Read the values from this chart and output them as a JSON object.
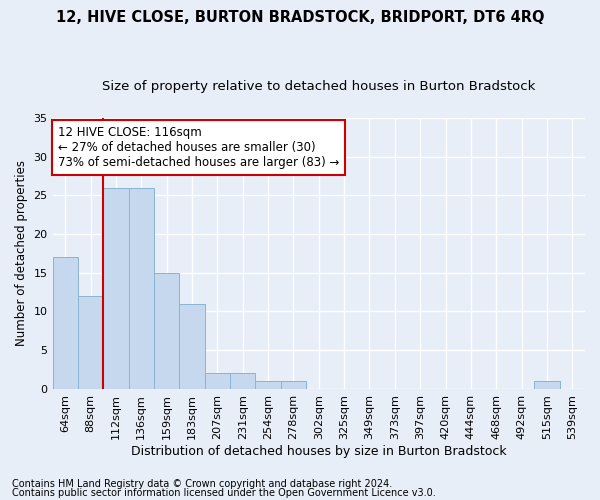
{
  "title": "12, HIVE CLOSE, BURTON BRADSTOCK, BRIDPORT, DT6 4RQ",
  "subtitle": "Size of property relative to detached houses in Burton Bradstock",
  "xlabel": "Distribution of detached houses by size in Burton Bradstock",
  "ylabel": "Number of detached properties",
  "bar_color": "#c5d8ed",
  "bar_edge_color": "#8ab4d4",
  "vline_color": "#cc0000",
  "vline_x": 2,
  "annotation_text": "12 HIVE CLOSE: 116sqm\n← 27% of detached houses are smaller (30)\n73% of semi-detached houses are larger (83) →",
  "annotation_box_color": "#ffffff",
  "annotation_box_edge_color": "#cc0000",
  "categories": [
    "64sqm",
    "88sqm",
    "112sqm",
    "136sqm",
    "159sqm",
    "183sqm",
    "207sqm",
    "231sqm",
    "254sqm",
    "278sqm",
    "302sqm",
    "325sqm",
    "349sqm",
    "373sqm",
    "397sqm",
    "420sqm",
    "444sqm",
    "468sqm",
    "492sqm",
    "515sqm",
    "539sqm"
  ],
  "values": [
    17,
    12,
    26,
    26,
    15,
    11,
    2,
    2,
    1,
    1,
    0,
    0,
    0,
    0,
    0,
    0,
    0,
    0,
    0,
    1,
    0
  ],
  "ylim": [
    0,
    35
  ],
  "yticks": [
    0,
    5,
    10,
    15,
    20,
    25,
    30,
    35
  ],
  "background_color": "#e8eef8",
  "grid_color": "#ffffff",
  "footnote1": "Contains HM Land Registry data © Crown copyright and database right 2024.",
  "footnote2": "Contains public sector information licensed under the Open Government Licence v3.0.",
  "title_fontsize": 10.5,
  "subtitle_fontsize": 9.5,
  "xlabel_fontsize": 9,
  "ylabel_fontsize": 8.5,
  "tick_fontsize": 8,
  "footnote_fontsize": 7,
  "annotation_fontsize": 8.5
}
